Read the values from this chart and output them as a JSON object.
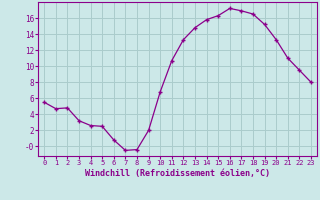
{
  "x": [
    0,
    1,
    2,
    3,
    4,
    5,
    6,
    7,
    8,
    9,
    10,
    11,
    12,
    13,
    14,
    15,
    16,
    17,
    18,
    19,
    20,
    21,
    22,
    23
  ],
  "y": [
    5.5,
    4.7,
    4.8,
    3.2,
    2.6,
    2.5,
    0.8,
    -0.5,
    -0.4,
    2.0,
    6.8,
    10.7,
    13.3,
    14.8,
    15.8,
    16.3,
    17.2,
    16.9,
    16.5,
    15.2,
    13.3,
    11.0,
    9.5,
    8.0
  ],
  "line_color": "#8b008b",
  "marker": "+",
  "bg_color": "#cce8e8",
  "grid_color": "#aacccc",
  "xlabel": "Windchill (Refroidissement éolien,°C)",
  "xlabel_color": "#8b008b",
  "tick_color": "#8b008b",
  "ylabel_ticks": [
    0,
    2,
    4,
    6,
    8,
    10,
    12,
    14,
    16
  ],
  "ylabel_labels": [
    "-0",
    "2",
    "4",
    "6",
    "8",
    "10",
    "12",
    "14",
    "16"
  ],
  "ylim": [
    -1.2,
    18.0
  ],
  "xlim": [
    -0.5,
    23.5
  ],
  "spine_color": "#8b008b"
}
